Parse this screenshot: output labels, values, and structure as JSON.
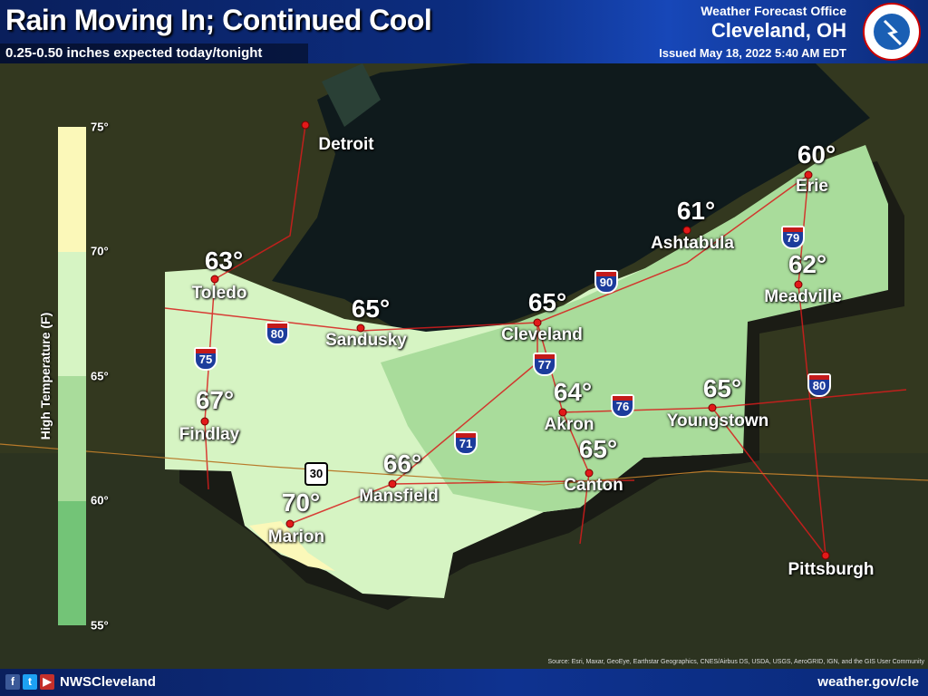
{
  "header": {
    "title": "Rain Moving In; Continued Cool",
    "subtitle": "0.25-0.50 inches expected today/tonight",
    "office_label": "Weather Forecast Office",
    "office_city": "Cleveland, OH",
    "issued": "Issued May 18, 2022 5:40 AM EDT",
    "logo": "NATIONAL WEATHER SERVICE"
  },
  "legend": {
    "title": "High Temperature (F)",
    "ticks": [
      "75°",
      "70°",
      "65°",
      "60°",
      "55°"
    ],
    "colors": [
      "#fbf8b9",
      "#d6f4c3",
      "#a9dc9b",
      "#73c477"
    ]
  },
  "cities": [
    {
      "name": "Detroit",
      "temp": ""
    },
    {
      "name": "Toledo",
      "temp": "63°"
    },
    {
      "name": "Sandusky",
      "temp": "65°"
    },
    {
      "name": "Cleveland",
      "temp": "65°"
    },
    {
      "name": "Ashtabula",
      "temp": "61°"
    },
    {
      "name": "Erie",
      "temp": "60°"
    },
    {
      "name": "Meadville",
      "temp": "62°"
    },
    {
      "name": "Findlay",
      "temp": "67°"
    },
    {
      "name": "Akron",
      "temp": "64°"
    },
    {
      "name": "Youngstown",
      "temp": "65°"
    },
    {
      "name": "Mansfield",
      "temp": "66°"
    },
    {
      "name": "Canton",
      "temp": "65°"
    },
    {
      "name": "Marion",
      "temp": "70°"
    },
    {
      "name": "Pittsburgh",
      "temp": ""
    }
  ],
  "interstates": [
    "75",
    "80",
    "77",
    "90",
    "71",
    "76",
    "79",
    "80"
  ],
  "us_routes": [
    "30"
  ],
  "footer": {
    "handle": "NWSCleveland",
    "url": "weather.gov/cle",
    "source": "Source: Esri, Maxar, GeoEye, Earthstar Geographics, CNES/Airbus DS, USDA, USGS, AeroGRID, IGN, and the GIS User Community",
    "social": [
      "facebook-icon",
      "twitter-icon",
      "youtube-icon"
    ]
  }
}
